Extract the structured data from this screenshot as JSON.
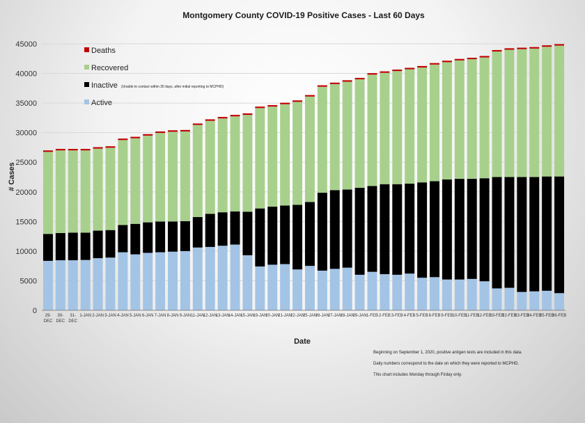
{
  "chart_data": {
    "type": "bar",
    "stacked": true,
    "title": "Montgomery County COVID-19 Positive Cases  - Last 60 Days",
    "xlabel": "Date",
    "ylabel": "# Cases",
    "ylim": [
      0,
      45000
    ],
    "yticks": [
      0,
      5000,
      10000,
      15000,
      20000,
      25000,
      30000,
      35000,
      40000,
      45000
    ],
    "grid": true,
    "legend_position": "top-left",
    "categories": [
      "29-DEC",
      "30-DEC",
      "31-DEC",
      "1-JAN",
      "2-JAN",
      "3-JAN",
      "4-JAN",
      "5-JAN",
      "6-JAN",
      "7-JAN",
      "8-JAN",
      "9-JAN",
      "11-JAN",
      "12-JAN",
      "13-JAN",
      "14-JAN",
      "15-JAN",
      "19-JAN",
      "20-JAN",
      "21-JAN",
      "22-JAN",
      "25-JAN",
      "26-JAN",
      "27-JAN",
      "28-JAN",
      "29-JAN",
      "1-FEB",
      "2-FEB",
      "3-FEB",
      "4-FEB",
      "5-FEB",
      "8-FEB",
      "9-FEB",
      "10-FEB",
      "11-FEB",
      "12-FEB",
      "19-FEB",
      "22-FEB",
      "23-FEB",
      "24-FEB",
      "25-FEB",
      "26-FEB"
    ],
    "series": [
      {
        "name": "Active",
        "color": "#a3c4e5",
        "values": [
          8350,
          8450,
          8450,
          8500,
          8800,
          8900,
          9800,
          9450,
          9700,
          9800,
          9900,
          10000,
          10600,
          10700,
          10900,
          11100,
          9300,
          7400,
          7700,
          7800,
          6900,
          7500,
          6700,
          7000,
          7200,
          6000,
          6500,
          6100,
          6000,
          6200,
          5500,
          5600,
          5200,
          5200,
          5300,
          4900,
          3700,
          3800,
          3100,
          3200,
          3300,
          2900
        ]
      },
      {
        "name": "Inactive",
        "color": "#000000",
        "values": [
          4550,
          4600,
          4650,
          4600,
          4650,
          4650,
          4600,
          5150,
          5150,
          5200,
          5100,
          5050,
          5150,
          5600,
          5650,
          5600,
          7350,
          9800,
          9800,
          9900,
          10900,
          10800,
          13150,
          13300,
          13200,
          14700,
          14500,
          15200,
          15300,
          15200,
          16100,
          16200,
          16900,
          17000,
          16900,
          17400,
          18800,
          18700,
          19400,
          19300,
          19300,
          19700
        ]
      },
      {
        "name": "Recovered",
        "color": "#a8d08d",
        "values": [
          13850,
          13950,
          13900,
          13900,
          13850,
          13900,
          14350,
          14450,
          14650,
          14950,
          15150,
          15150,
          15550,
          15700,
          15850,
          16050,
          16350,
          16950,
          16900,
          17100,
          17400,
          17800,
          17900,
          17900,
          18200,
          18300,
          18800,
          18800,
          19100,
          19300,
          19400,
          19700,
          19800,
          20000,
          20200,
          20400,
          21200,
          21500,
          21600,
          21700,
          21900,
          22100
        ]
      },
      {
        "name": "Deaths",
        "color": "#c00000",
        "values": [
          250,
          250,
          250,
          250,
          250,
          250,
          250,
          250,
          250,
          250,
          250,
          250,
          250,
          250,
          250,
          250,
          250,
          250,
          250,
          250,
          250,
          250,
          250,
          250,
          250,
          250,
          250,
          250,
          250,
          250,
          250,
          250,
          250,
          250,
          250,
          250,
          250,
          250,
          250,
          250,
          250,
          250
        ]
      }
    ]
  },
  "legend": {
    "deaths": "Deaths",
    "recovered": "Recovered",
    "inactive": "Inactive",
    "inactive_note": "(Unable to contact within 30 days, after initial reporting to MCPHD)",
    "active": "Active"
  },
  "footnotes": [
    "Beginning on September 1, 2020, positive antigen tests are included in this data.",
    "Daily numbers correspond to the date on which they were reported to MCPHD.",
    "This chart includes Monday through Firday only."
  ]
}
